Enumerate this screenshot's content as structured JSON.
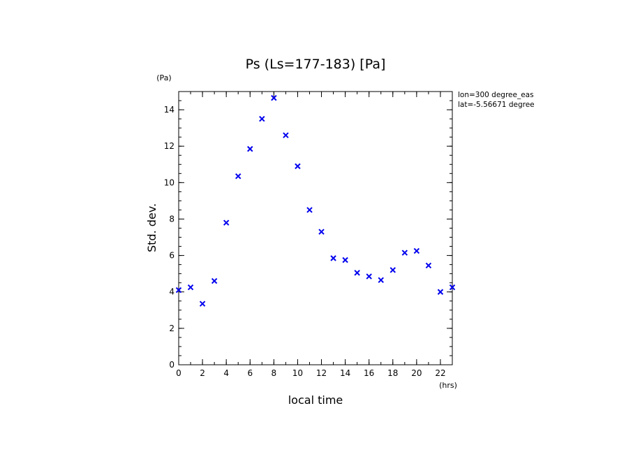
{
  "chart_data": {
    "type": "scatter",
    "title": "Ps (Ls=177-183) [Pa]",
    "xlabel": "local time",
    "ylabel": "Std. dev.",
    "x_unit": "(hrs)",
    "y_unit": "(Pa)",
    "xlim": [
      0,
      23
    ],
    "ylim": [
      0,
      15
    ],
    "x_ticks": [
      0,
      2,
      4,
      6,
      8,
      10,
      12,
      14,
      16,
      18,
      20,
      22
    ],
    "y_ticks": [
      0,
      2,
      4,
      6,
      8,
      10,
      12,
      14
    ],
    "x_minor_step": 1,
    "y_minor_step": 0.5,
    "grid": false,
    "marker": "x",
    "marker_color": "#0000ee",
    "annotations": [
      "lon=300 degree_eas",
      "lat=-5.56671 degree"
    ],
    "series": [
      {
        "x": [
          0,
          1,
          2,
          3,
          4,
          5,
          6,
          7,
          8,
          9,
          10,
          11,
          12,
          13,
          14,
          15,
          16,
          17,
          18,
          19,
          20,
          21,
          22,
          23
        ],
        "values": [
          4.1,
          4.25,
          3.35,
          4.6,
          7.8,
          10.35,
          11.85,
          13.5,
          14.65,
          12.6,
          10.9,
          8.5,
          7.3,
          5.85,
          5.75,
          5.05,
          4.85,
          4.65,
          5.2,
          6.15,
          6.25,
          5.45,
          4.0,
          4.25
        ]
      }
    ]
  }
}
